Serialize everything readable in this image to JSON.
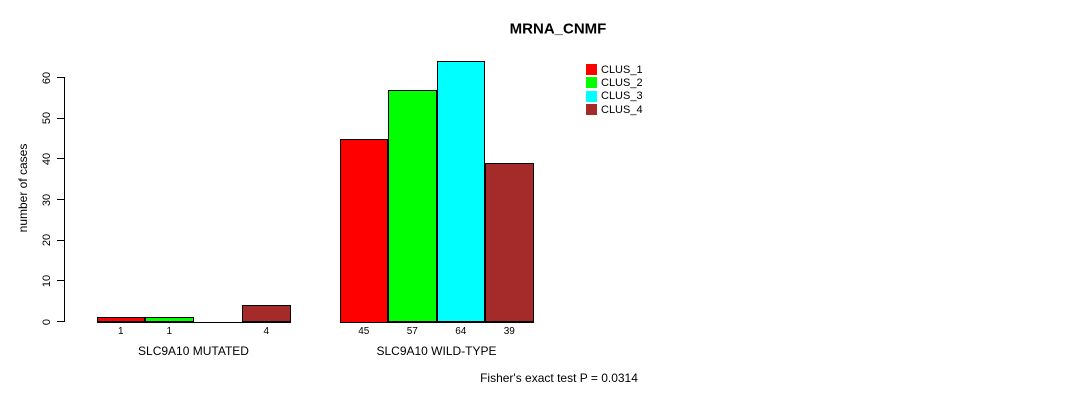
{
  "chart_data": {
    "type": "bar",
    "title": "MRNA_CNMF",
    "ylabel": "number of cases",
    "xlabel": "",
    "ylim": [
      0,
      60
    ],
    "yticks": [
      0,
      10,
      20,
      30,
      40,
      50,
      60
    ],
    "grid": false,
    "legend_position": "top-right",
    "series": [
      {
        "name": "CLUS_1",
        "color": "#ff0000",
        "values": [
          1,
          45
        ]
      },
      {
        "name": "CLUS_2",
        "color": "#00ff00",
        "values": [
          1,
          57
        ]
      },
      {
        "name": "CLUS_3",
        "color": "#00ffff",
        "values": [
          0,
          64
        ]
      },
      {
        "name": "CLUS_4",
        "color": "#a52a2a",
        "values": [
          4,
          39
        ]
      }
    ],
    "groups": [
      {
        "label": "SLC9A10 MUTATED",
        "values": [
          1,
          1,
          0,
          4
        ],
        "bar_labels": [
          "1",
          "1",
          "",
          "4"
        ]
      },
      {
        "label": "SLC9A10 WILD-TYPE",
        "values": [
          45,
          57,
          64,
          39
        ],
        "bar_labels": [
          "45",
          "57",
          "64",
          "39"
        ]
      }
    ],
    "annotation": "Fisher's exact test P = 0.0314"
  },
  "legend": {
    "items": [
      {
        "label": "CLUS_1",
        "color": "#ff0000"
      },
      {
        "label": "CLUS_2",
        "color": "#00ff00"
      },
      {
        "label": "CLUS_3",
        "color": "#00ffff"
      },
      {
        "label": "CLUS_4",
        "color": "#a52a2a"
      }
    ]
  },
  "colors": {
    "axis": "#000000",
    "text": "#000000",
    "background": "#ffffff"
  }
}
